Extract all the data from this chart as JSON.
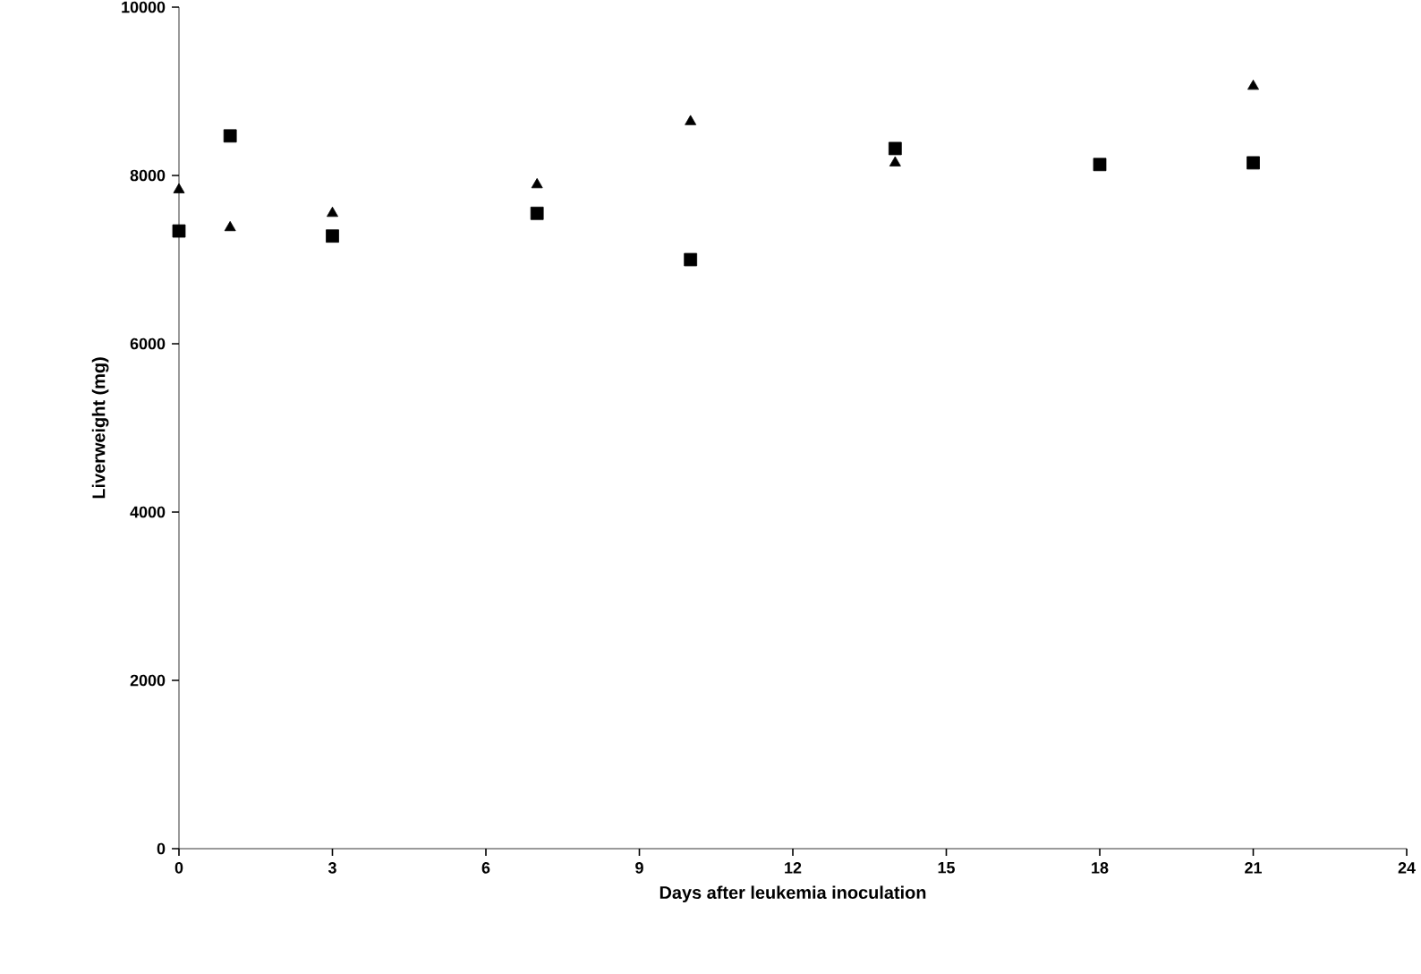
{
  "chart_data": {
    "type": "scatter",
    "xlabel": "Days after leukemia inoculation",
    "ylabel": "Liverweight (mg)",
    "xlim": [
      0,
      24
    ],
    "xticks": [
      0,
      3,
      6,
      9,
      12,
      15,
      18,
      21,
      24
    ],
    "ylim": [
      0,
      10000
    ],
    "yticks": [
      0,
      2000,
      4000,
      6000,
      8000,
      10000
    ],
    "grid": false,
    "series": [
      {
        "color": "#000000",
        "marker": "square",
        "x": [
          0,
          1,
          3,
          7,
          10,
          14,
          18,
          21
        ],
        "values": [
          7340,
          8470,
          7280,
          7550,
          7000,
          8320,
          8130,
          8150
        ]
      },
      {
        "color": "#000000",
        "marker": "triangle",
        "x": [
          0,
          1,
          3,
          7,
          10,
          14,
          21
        ],
        "values": [
          7830,
          7380,
          7550,
          7890,
          8640,
          8150,
          9060
        ]
      }
    ]
  }
}
